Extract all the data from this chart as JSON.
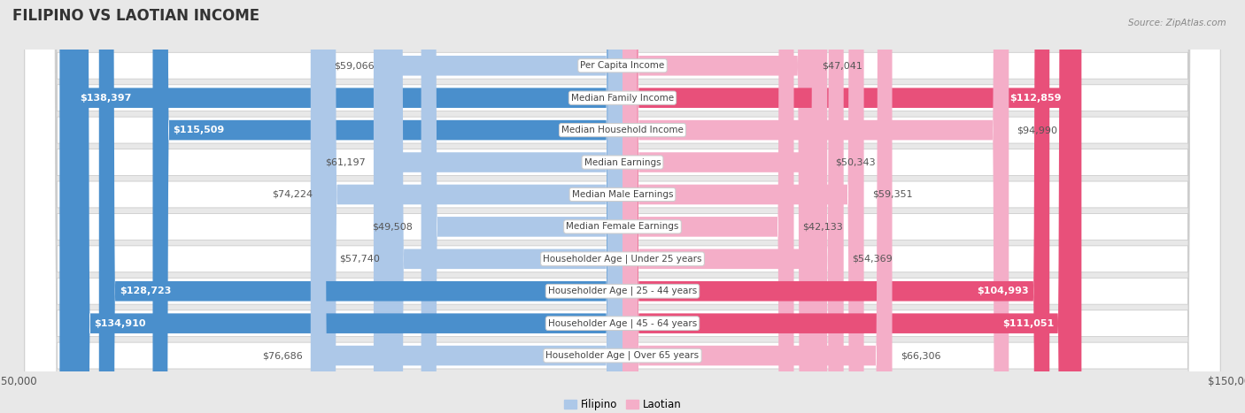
{
  "title": "FILIPINO VS LAOTIAN INCOME",
  "source": "Source: ZipAtlas.com",
  "categories": [
    "Per Capita Income",
    "Median Family Income",
    "Median Household Income",
    "Median Earnings",
    "Median Male Earnings",
    "Median Female Earnings",
    "Householder Age | Under 25 years",
    "Householder Age | 25 - 44 years",
    "Householder Age | 45 - 64 years",
    "Householder Age | Over 65 years"
  ],
  "filipino_values": [
    59066,
    138397,
    115509,
    61197,
    74224,
    49508,
    57740,
    128723,
    134910,
    76686
  ],
  "laotian_values": [
    47041,
    112859,
    94990,
    50343,
    59351,
    42133,
    54369,
    104993,
    111051,
    66306
  ],
  "filipino_labels": [
    "$59,066",
    "$138,397",
    "$115,509",
    "$61,197",
    "$74,224",
    "$49,508",
    "$57,740",
    "$128,723",
    "$134,910",
    "$76,686"
  ],
  "laotian_labels": [
    "$47,041",
    "$112,859",
    "$94,990",
    "$50,343",
    "$59,351",
    "$42,133",
    "$54,369",
    "$104,993",
    "$111,051",
    "$66,306"
  ],
  "max_value": 150000,
  "filipino_color_light": "#adc8e8",
  "laotian_color_light": "#f4aec8",
  "filipino_color_strong": "#4a8fcc",
  "laotian_color_strong": "#e8507a",
  "fig_bg": "#e8e8e8",
  "row_bg": "#f5f5f5",
  "bar_height": 0.62,
  "title_fontsize": 12,
  "label_fontsize": 8,
  "category_fontsize": 7.5,
  "threshold": 100000
}
